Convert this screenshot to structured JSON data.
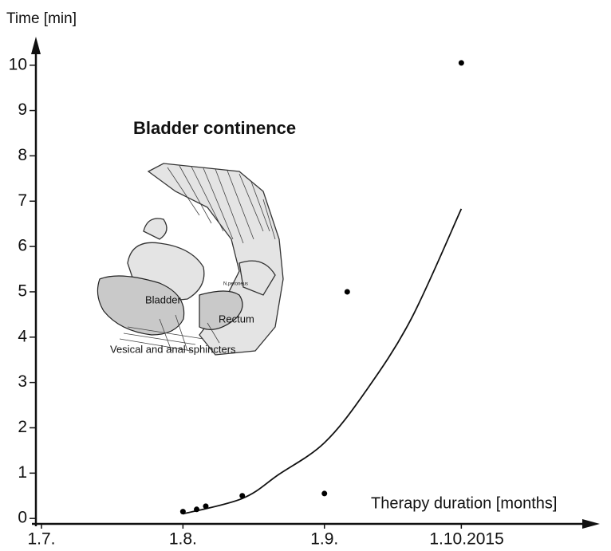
{
  "chart_data": {
    "type": "scatter",
    "title": "Bladder continence",
    "y_label": "Time [min]",
    "x_label": "Therapy duration [months]",
    "x": [
      "2015-08-01",
      "2015-08-04",
      "2015-08-06",
      "2015-08-14",
      "2015-09-01",
      "2015-09-06",
      "2015-10-01"
    ],
    "values": [
      0.15,
      0.2,
      0.27,
      0.5,
      0.55,
      5.0,
      10.05
    ],
    "color": "#000000",
    "trend": {
      "x": [
        "2015-08-01",
        "2015-08-14",
        "2015-08-22",
        "2015-09-01",
        "2015-09-10",
        "2015-09-20",
        "2015-10-01"
      ],
      "values": [
        0.1,
        0.44,
        0.97,
        1.67,
        2.8,
        4.4,
        6.83
      ]
    },
    "xlim": [
      "2015-07-01",
      "2015-10-31"
    ],
    "xticks": [
      {
        "value": "2015-07-01",
        "label": "1.7."
      },
      {
        "value": "2015-08-01",
        "label": "1.8."
      },
      {
        "value": "2015-09-01",
        "label": "1.9."
      },
      {
        "value": "2015-10-01",
        "label": "1.10.2015"
      }
    ],
    "ylim": [
      -0.12,
      10.4
    ],
    "yticks": [
      0,
      1,
      2,
      3,
      4,
      5,
      6,
      7,
      8,
      9,
      10
    ],
    "grid": false
  },
  "annotations": {
    "bladder": "Bladder",
    "rectum": "Rectum",
    "sphincters": "Vesical and anal sphincters",
    "nerve": "N.peroneus"
  }
}
